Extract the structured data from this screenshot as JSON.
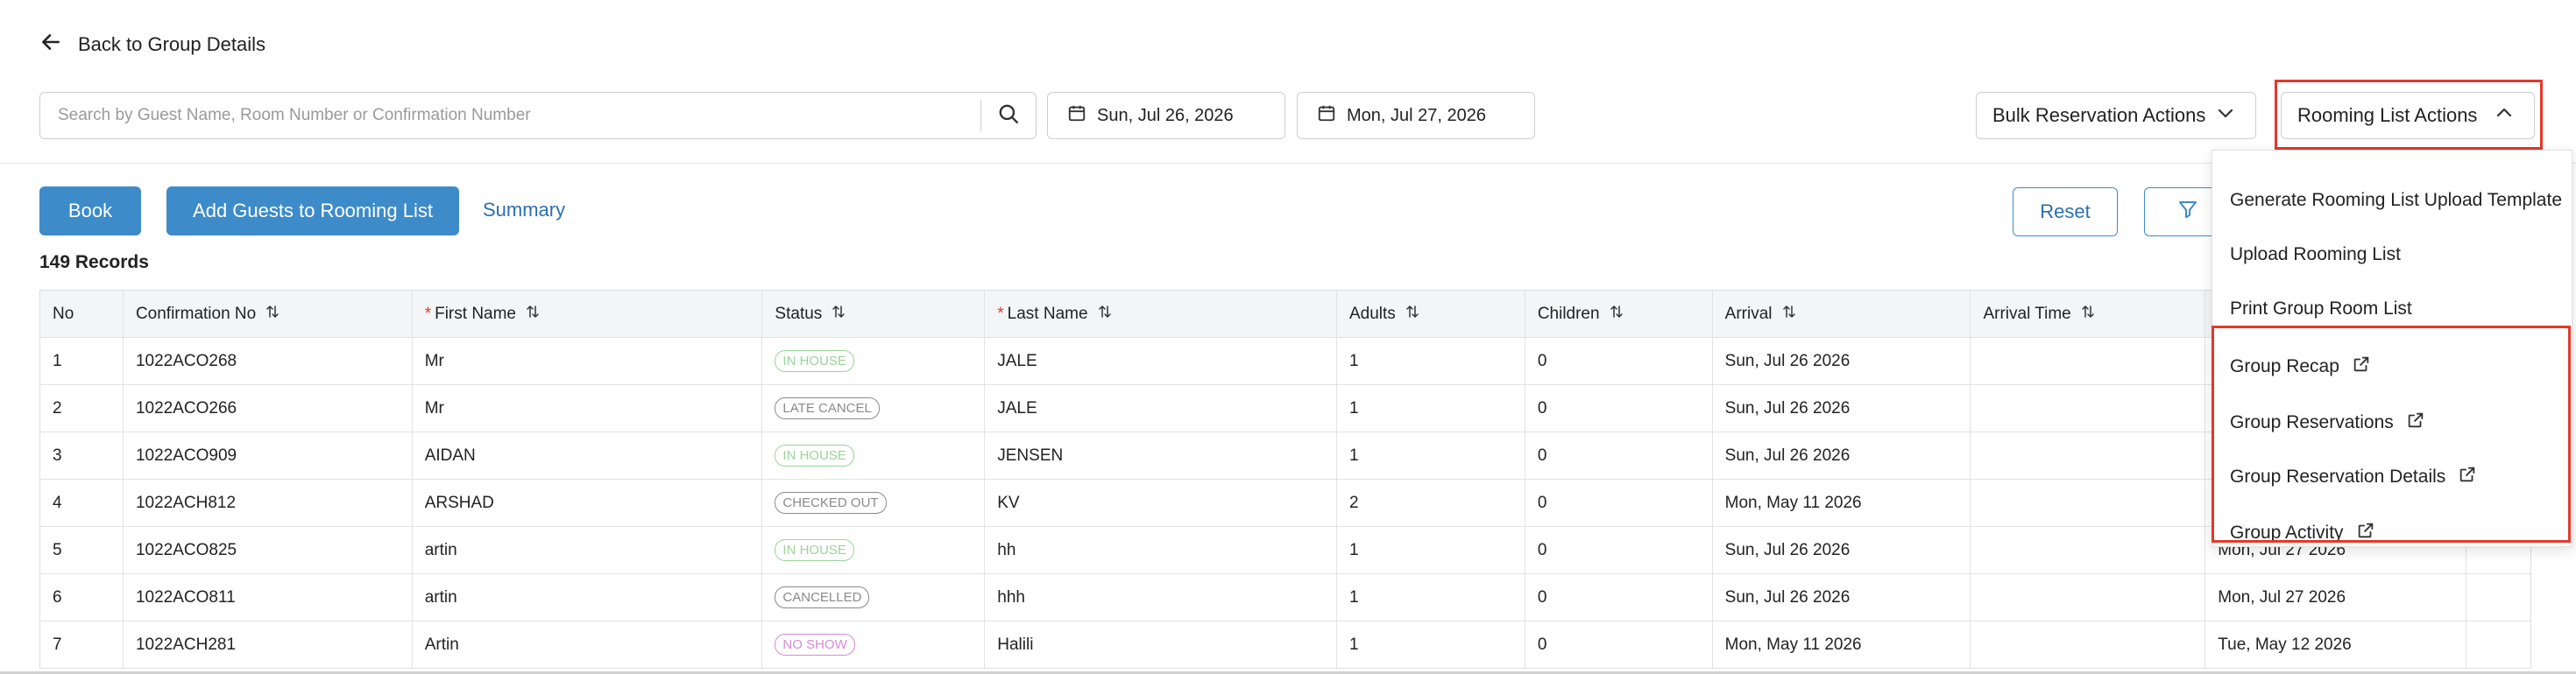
{
  "header": {
    "back_label": "Back to Group Details"
  },
  "search": {
    "placeholder": "Search by Guest Name, Room Number or Confirmation Number",
    "value": ""
  },
  "dates": {
    "from": "Sun, Jul 26, 2026",
    "to": "Mon, Jul 27, 2026"
  },
  "actions": {
    "bulk_label": "Bulk Reservation Actions",
    "rooming_label": "Rooming List Actions"
  },
  "toolbar": {
    "book_label": "Book",
    "add_guests_label": "Add Guests to Rooming List",
    "summary_label": "Summary",
    "reset_label": "Reset"
  },
  "records_label": "149 Records",
  "table": {
    "columns": [
      "No",
      "Confirmation No",
      "First Name",
      "Status",
      "Last Name",
      "Adults",
      "Children",
      "Arrival",
      "Arrival Time",
      "",
      ""
    ],
    "rows": [
      {
        "no": "1",
        "conf": "1022ACO268",
        "first": "Mr",
        "status": "IN HOUSE",
        "status_color": "#9bd39b",
        "last": "JALE",
        "adults": "1",
        "children": "0",
        "arrival": "Sun, Jul 26 2026",
        "arrival_time": "",
        "departure": ""
      },
      {
        "no": "2",
        "conf": "1022ACO266",
        "first": "Mr",
        "status": "LATE CANCEL",
        "status_color": "#8a8a8a",
        "last": "JALE",
        "adults": "1",
        "children": "0",
        "arrival": "Sun, Jul 26 2026",
        "arrival_time": "",
        "departure": ""
      },
      {
        "no": "3",
        "conf": "1022ACO909",
        "first": "AIDAN",
        "status": "IN HOUSE",
        "status_color": "#9bd39b",
        "last": "JENSEN",
        "adults": "1",
        "children": "0",
        "arrival": "Sun, Jul 26 2026",
        "arrival_time": "",
        "departure": ""
      },
      {
        "no": "4",
        "conf": "1022ACH812",
        "first": "ARSHAD",
        "status": "CHECKED OUT",
        "status_color": "#8a8a8a",
        "last": "KV",
        "adults": "2",
        "children": "0",
        "arrival": "Mon, May 11 2026",
        "arrival_time": "",
        "departure": ""
      },
      {
        "no": "5",
        "conf": "1022ACO825",
        "first": "artin",
        "status": "IN HOUSE",
        "status_color": "#9bd39b",
        "last": "hh",
        "adults": "1",
        "children": "0",
        "arrival": "Sun, Jul 26 2026",
        "arrival_time": "",
        "departure": "Mon, Jul 27 2026"
      },
      {
        "no": "6",
        "conf": "1022ACO811",
        "first": "artin",
        "status": "CANCELLED",
        "status_color": "#8a8a8a",
        "last": "hhh",
        "adults": "1",
        "children": "0",
        "arrival": "Sun, Jul 26 2026",
        "arrival_time": "",
        "departure": "Mon, Jul 27 2026"
      },
      {
        "no": "7",
        "conf": "1022ACH281",
        "first": "Artin",
        "status": "NO SHOW",
        "status_color": "#d58ad8",
        "last": "Halili",
        "adults": "1",
        "children": "0",
        "arrival": "Mon, May 11 2026",
        "arrival_time": "",
        "departure": "Tue, May 12 2026"
      }
    ]
  },
  "dropdown": {
    "items": [
      {
        "label": "Generate Rooming List Upload Template",
        "external": false
      },
      {
        "label": "Upload Rooming List",
        "external": false
      },
      {
        "label": "Print Group Room List",
        "external": false
      },
      {
        "label": "Group Recap",
        "external": true
      },
      {
        "label": "Group Reservations",
        "external": true
      },
      {
        "label": "Group Reservation Details",
        "external": true
      },
      {
        "label": "Group Activity",
        "external": true
      }
    ]
  },
  "colors": {
    "primary": "#3d8bc9",
    "highlight": "#e2392b",
    "link": "#2c6fb0"
  }
}
